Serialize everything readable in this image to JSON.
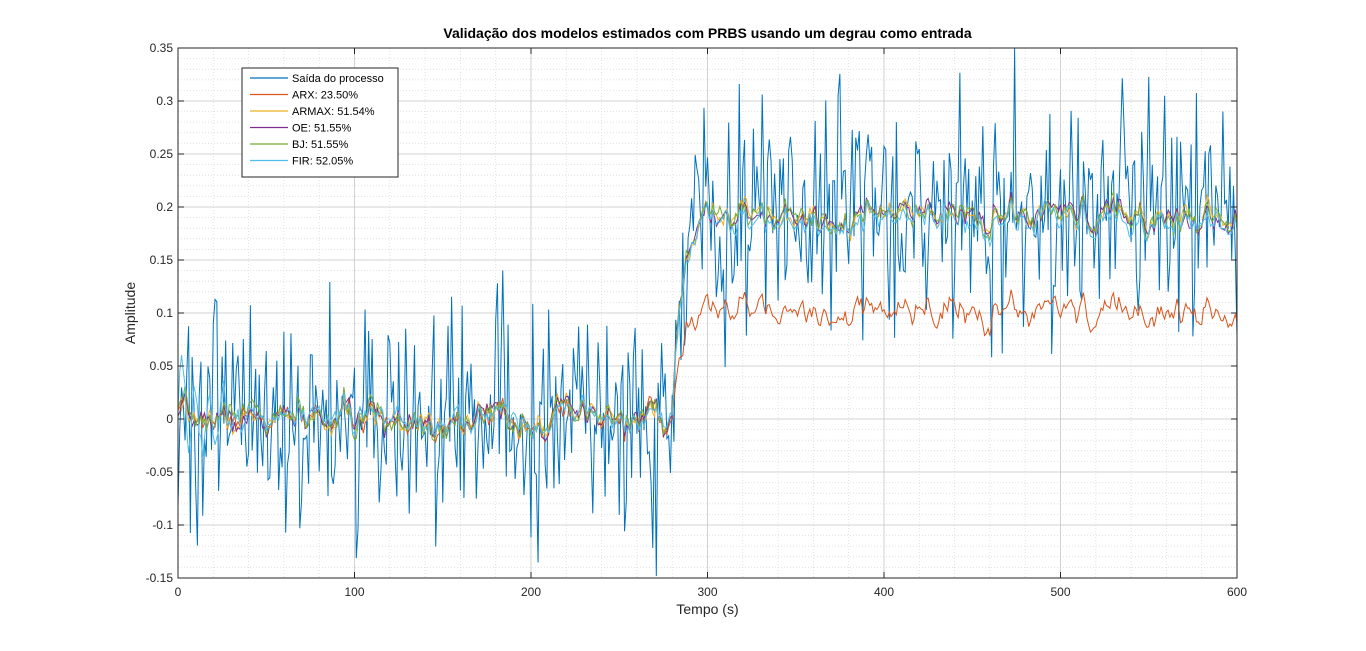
{
  "chart_data": {
    "type": "line",
    "title": "Validação dos modelos estimados com PRBS usando um degrau como entrada",
    "xlabel": "Tempo (s)",
    "ylabel": "Amplitude",
    "xlim": [
      0,
      600
    ],
    "ylim": [
      -0.15,
      0.35
    ],
    "xticks": [
      0,
      100,
      200,
      300,
      400,
      500,
      600
    ],
    "yticks": [
      -0.15,
      -0.1,
      -0.05,
      0,
      0.05,
      0.1,
      0.15,
      0.2,
      0.25,
      0.3,
      0.35
    ],
    "xtick_labels": [
      "0",
      "100",
      "200",
      "300",
      "400",
      "500",
      "600"
    ],
    "ytick_labels": [
      "-0.15",
      "-0.1",
      "-0.05",
      "0",
      "0.05",
      "0.1",
      "0.15",
      "0.2",
      "0.25",
      "0.3",
      "0.35"
    ],
    "grid": true,
    "minor_grid": true,
    "legend_position": "top-left",
    "step_time": 280,
    "series": [
      {
        "name": "Saída do processo",
        "color": "#0072BD",
        "pre_level": 0.0,
        "post_level": 0.2,
        "noise": 0.055,
        "rise": 22
      },
      {
        "name": "ARX: 23.50%",
        "color": "#D95319",
        "pre_level": 0.0,
        "post_level": 0.1,
        "noise": 0.012,
        "rise": 22
      },
      {
        "name": "ARMAX: 51.54%",
        "color": "#EDB120",
        "pre_level": 0.0,
        "post_level": 0.19,
        "noise": 0.012,
        "rise": 22
      },
      {
        "name": "OE: 51.55%",
        "color": "#7E2F8E",
        "pre_level": 0.0,
        "post_level": 0.19,
        "noise": 0.012,
        "rise": 22
      },
      {
        "name": "BJ: 51.55%",
        "color": "#77AC30",
        "pre_level": 0.0,
        "post_level": 0.19,
        "noise": 0.013,
        "rise": 22
      },
      {
        "name": "FIR: 52.05%",
        "color": "#4DBEEE",
        "pre_level": 0.0,
        "post_level": 0.185,
        "noise": 0.012,
        "rise": 22
      }
    ]
  }
}
